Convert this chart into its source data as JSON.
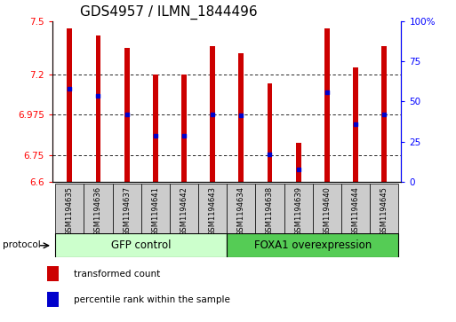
{
  "title": "GDS4957 / ILMN_1844496",
  "samples": [
    "GSM1194635",
    "GSM1194636",
    "GSM1194637",
    "GSM1194641",
    "GSM1194642",
    "GSM1194643",
    "GSM1194634",
    "GSM1194638",
    "GSM1194639",
    "GSM1194640",
    "GSM1194644",
    "GSM1194645"
  ],
  "bar_tops": [
    7.46,
    7.42,
    7.35,
    7.2,
    7.2,
    7.36,
    7.32,
    7.15,
    6.82,
    7.46,
    7.24,
    7.36
  ],
  "bar_bottoms": [
    6.6,
    6.6,
    6.6,
    6.6,
    6.6,
    6.6,
    6.6,
    6.6,
    6.6,
    6.6,
    6.6,
    6.6
  ],
  "blue_dot_values": [
    7.12,
    7.08,
    6.975,
    6.86,
    6.86,
    6.975,
    6.97,
    6.755,
    6.67,
    7.1,
    6.925,
    6.975
  ],
  "ylim": [
    6.6,
    7.5
  ],
  "yticks": [
    6.6,
    6.75,
    6.975,
    7.2,
    7.5
  ],
  "ytick_labels": [
    "6.6",
    "6.75",
    "6.975",
    "7.2",
    "7.5"
  ],
  "right_yticks": [
    0,
    25,
    50,
    75,
    100
  ],
  "right_ytick_labels": [
    "0",
    "25",
    "50",
    "75",
    "100%"
  ],
  "gridlines": [
    6.75,
    6.975,
    7.2
  ],
  "group1_label": "GFP control",
  "group2_label": "FOXA1 overexpression",
  "group1_count": 6,
  "group2_count": 6,
  "bar_color": "#cc0000",
  "dot_color": "#0000cc",
  "group1_color": "#ccffcc",
  "group2_color": "#55cc55",
  "label_bg_color": "#cccccc",
  "protocol_label": "protocol",
  "legend_bar_label": "transformed count",
  "legend_dot_label": "percentile rank within the sample",
  "title_fontsize": 11,
  "tick_fontsize": 7.5,
  "sample_fontsize": 6,
  "group_fontsize": 8.5,
  "legend_fontsize": 7.5,
  "bar_width": 0.18
}
